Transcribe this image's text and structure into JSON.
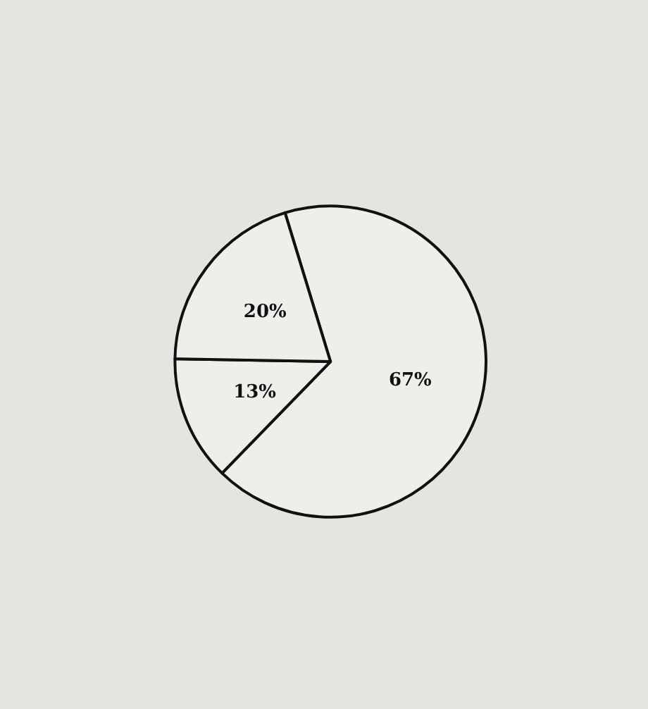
{
  "chart_data": {
    "type": "pie",
    "categories": [
      null,
      null,
      null
    ],
    "values": [
      67,
      13,
      20
    ],
    "value_labels": [
      "67%",
      "13%",
      "20%"
    ],
    "colors": [
      "#eeeeea",
      "#eeeeea",
      "#eeeeea"
    ],
    "legend": false
  }
}
